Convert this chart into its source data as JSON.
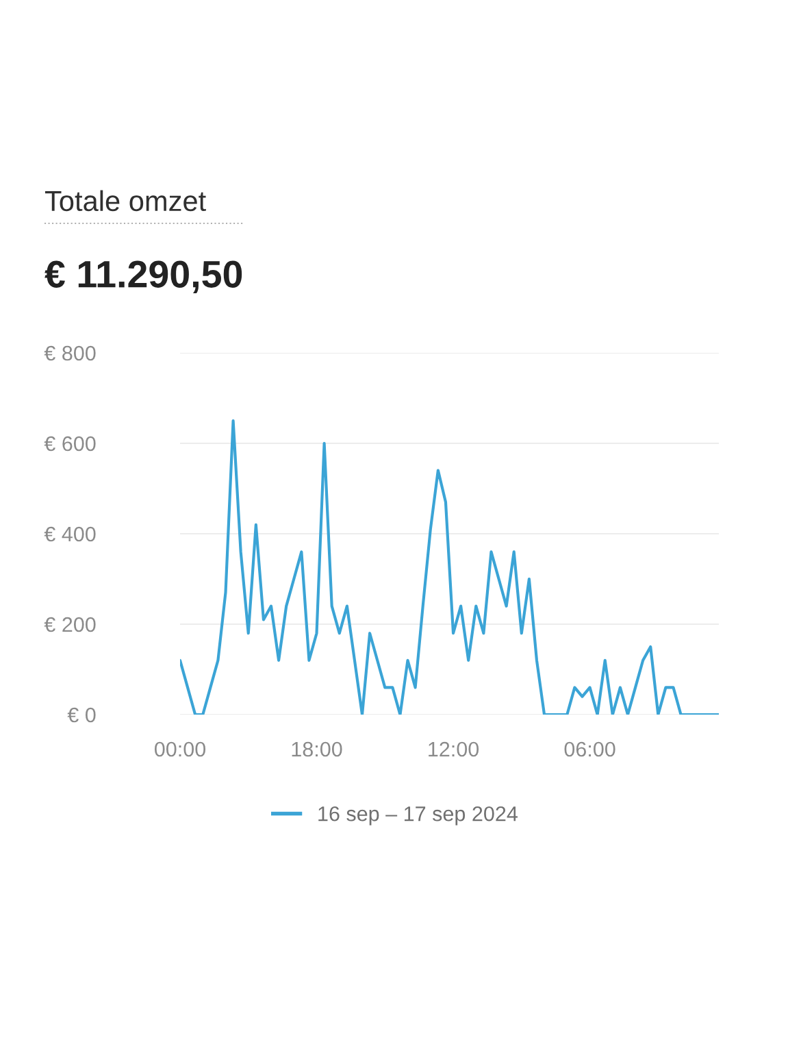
{
  "chart_data": {
    "type": "line",
    "title": "Totale omzet",
    "subtitle": "€ 11.290,50",
    "x": [
      "2024-09-16T00:00",
      "2024-09-16T01:00",
      "2024-09-16T02:00",
      "2024-09-16T03:00",
      "2024-09-16T04:00",
      "2024-09-16T05:00",
      "2024-09-16T06:00",
      "2024-09-16T07:00",
      "2024-09-16T08:00",
      "2024-09-16T09:00",
      "2024-09-16T10:00",
      "2024-09-16T11:00",
      "2024-09-16T12:00",
      "2024-09-16T13:00",
      "2024-09-16T14:00",
      "2024-09-16T15:00",
      "2024-09-16T16:00",
      "2024-09-16T17:00",
      "2024-09-16T18:00",
      "2024-09-16T19:00",
      "2024-09-16T20:00",
      "2024-09-16T21:00",
      "2024-09-16T22:00",
      "2024-09-16T23:00",
      "2024-09-17T00:00",
      "2024-09-17T01:00",
      "2024-09-17T02:00",
      "2024-09-17T03:00",
      "2024-09-17T04:00",
      "2024-09-17T05:00",
      "2024-09-17T06:00",
      "2024-09-17T07:00",
      "2024-09-17T08:00",
      "2024-09-17T09:00",
      "2024-09-17T10:00",
      "2024-09-17T11:00",
      "2024-09-17T12:00",
      "2024-09-17T13:00",
      "2024-09-17T14:00",
      "2024-09-17T15:00",
      "2024-09-17T16:00",
      "2024-09-17T17:00",
      "2024-09-17T18:00",
      "2024-09-17T19:00",
      "2024-09-17T20:00",
      "2024-09-17T21:00",
      "2024-09-17T22:00",
      "2024-09-17T23:00",
      "2024-09-18T00:00",
      "2024-09-18T01:00",
      "2024-09-18T02:00",
      "2024-09-18T03:00",
      "2024-09-18T04:00",
      "2024-09-18T05:00",
      "2024-09-18T06:00",
      "2024-09-18T07:00",
      "2024-09-18T08:00",
      "2024-09-18T09:00",
      "2024-09-18T10:00",
      "2024-09-18T11:00",
      "2024-09-18T12:00",
      "2024-09-18T13:00",
      "2024-09-18T14:00",
      "2024-09-18T15:00",
      "2024-09-18T16:00",
      "2024-09-18T17:00",
      "2024-09-18T18:00",
      "2024-09-18T19:00",
      "2024-09-18T20:00",
      "2024-09-18T21:00",
      "2024-09-18T22:00",
      "2024-09-18T23:00"
    ],
    "series": [
      {
        "name": "16 sep – 17 sep 2024",
        "color": "#3ba4d6",
        "values": [
          120,
          60,
          0,
          0,
          60,
          120,
          270,
          650,
          360,
          180,
          420,
          210,
          240,
          120,
          240,
          300,
          360,
          120,
          180,
          600,
          240,
          180,
          240,
          120,
          0,
          180,
          120,
          60,
          60,
          0,
          120,
          60,
          240,
          410,
          540,
          470,
          180,
          240,
          120,
          240,
          180,
          360,
          300,
          240,
          360,
          180,
          300,
          120,
          0,
          0,
          0,
          0,
          60,
          40,
          60,
          0,
          120,
          0,
          60,
          0,
          60,
          120,
          150,
          0,
          60,
          60,
          0,
          0,
          0,
          0,
          0,
          0
        ]
      }
    ],
    "xlim": [
      "2024-09-16T00:00",
      "2024-09-18T23:00"
    ],
    "xticks": [
      {
        "value": "2024-09-16T00:00",
        "label": "00:00"
      },
      {
        "value": "2024-09-16T18:00",
        "label": "18:00"
      },
      {
        "value": "2024-09-17T12:00",
        "label": "12:00"
      },
      {
        "value": "2024-09-18T06:00",
        "label": "06:00"
      }
    ],
    "ylim": [
      0,
      800
    ],
    "yticks": [
      {
        "value": 0,
        "label": "€ 0"
      },
      {
        "value": 200,
        "label": "€ 200"
      },
      {
        "value": 400,
        "label": "€ 400"
      },
      {
        "value": 600,
        "label": "€ 600"
      },
      {
        "value": 800,
        "label": "€ 800"
      }
    ],
    "grid": "y",
    "legend": "bottom",
    "marker": "none",
    "line_style": "solid"
  }
}
